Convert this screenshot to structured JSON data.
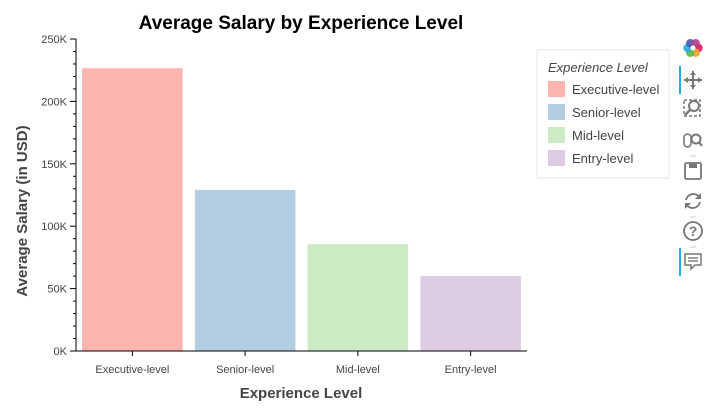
{
  "chart_data": {
    "type": "bar",
    "title": "Average Salary by Experience Level",
    "xlabel": "Experience Level",
    "ylabel": "Average Salary (in USD)",
    "categories": [
      "Executive-level",
      "Senior-level",
      "Mid-level",
      "Entry-level"
    ],
    "values": [
      227000,
      129500,
      86000,
      60500
    ],
    "colors": [
      "#fbb4ae",
      "#b3cde3",
      "#ccebc5",
      "#decbe4"
    ],
    "ylim": [
      0,
      250000
    ],
    "yticks": [
      0,
      50000,
      100000,
      150000,
      200000,
      250000
    ],
    "ytick_labels": [
      "0K",
      "50K",
      "100K",
      "150K",
      "200K",
      "250K"
    ],
    "grid": false,
    "legend": {
      "title": "Experience Level",
      "placement": "right",
      "entries": [
        "Executive-level",
        "Senior-level",
        "Mid-level",
        "Entry-level"
      ]
    }
  },
  "toolbar": {
    "items": [
      {
        "name": "bokeh-logo-icon",
        "icon": "bokeh-logo",
        "active": false
      },
      {
        "name": "pan-tool-icon",
        "icon": "pan",
        "active": true
      },
      {
        "name": "box-zoom-tool-icon",
        "icon": "box-zoom",
        "active": false
      },
      {
        "name": "wheel-zoom-tool-icon",
        "icon": "wheel-zoom",
        "active": false
      },
      {
        "name": "save-tool-icon",
        "icon": "save",
        "active": false
      },
      {
        "name": "reset-tool-icon",
        "icon": "reset",
        "active": false
      },
      {
        "name": "help-tool-icon",
        "icon": "help",
        "active": false
      },
      {
        "name": "hover-tool-icon",
        "icon": "hover",
        "active": true
      }
    ],
    "accent": "#26aae1"
  }
}
